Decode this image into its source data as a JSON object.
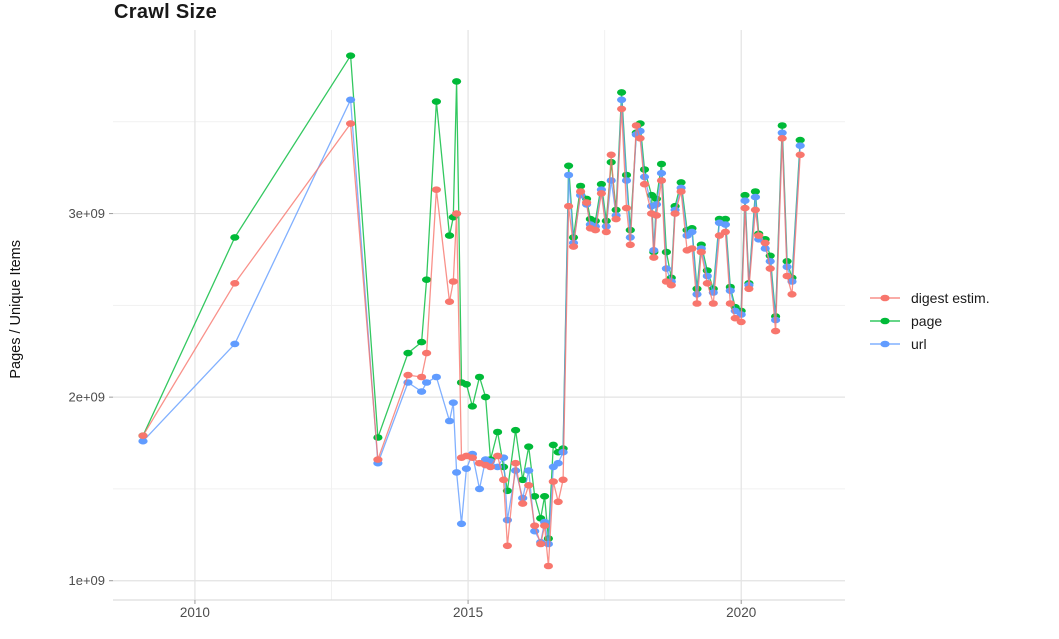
{
  "chart_data": {
    "type": "line",
    "title": "Crawl Size",
    "xlabel": "",
    "ylabel": "Pages / Unique Items",
    "value_unit": "1e9",
    "grid": true,
    "legend_position": "right-center",
    "x_axis": {
      "range": [
        2008.5,
        2021.9
      ],
      "ticks": [
        2010,
        2015,
        2020
      ],
      "tick_labels": [
        "2010",
        "2015",
        "2020"
      ],
      "minor_ticks": [
        2012.5,
        2017.5
      ]
    },
    "y_axis": {
      "range": [
        0.895,
        4.0
      ],
      "ticks": [
        1,
        2,
        3
      ],
      "tick_labels": [
        "1e+09",
        "2e+09",
        "3e+09"
      ],
      "minor_ticks": [
        1.5,
        2.5,
        3.5
      ]
    },
    "x_years": [
      2009.05,
      2010.73,
      2012.85,
      2013.35,
      2013.9,
      2014.15,
      2014.24,
      2014.42,
      2014.66,
      2014.73,
      2014.79,
      2014.88,
      2014.97,
      2015.08,
      2015.21,
      2015.32,
      2015.41,
      2015.54,
      2015.65,
      2015.72,
      2015.87,
      2016.0,
      2016.11,
      2016.22,
      2016.33,
      2016.4,
      2016.47,
      2016.56,
      2016.65,
      2016.74,
      2016.84,
      2016.93,
      2017.06,
      2017.17,
      2017.24,
      2017.33,
      2017.44,
      2017.53,
      2017.62,
      2017.71,
      2017.81,
      2017.9,
      2017.97,
      2018.08,
      2018.15,
      2018.23,
      2018.36,
      2018.4,
      2018.45,
      2018.54,
      2018.63,
      2018.72,
      2018.79,
      2018.9,
      2019.01,
      2019.1,
      2019.19,
      2019.27,
      2019.38,
      2019.49,
      2019.6,
      2019.71,
      2019.8,
      2019.89,
      2020.0,
      2020.07,
      2020.14,
      2020.26,
      2020.32,
      2020.44,
      2020.53,
      2020.63,
      2020.75,
      2020.84,
      2020.93,
      2021.08
    ],
    "series": [
      {
        "name": "digest estim.",
        "color": "#F8766D",
        "values": [
          1.79,
          2.62,
          3.49,
          1.66,
          2.12,
          2.11,
          2.24,
          3.13,
          2.52,
          2.63,
          3.0,
          1.67,
          1.68,
          1.67,
          1.64,
          1.63,
          1.62,
          1.68,
          1.55,
          1.19,
          1.64,
          1.42,
          1.52,
          1.3,
          1.2,
          1.3,
          1.08,
          1.54,
          1.43,
          1.55,
          3.04,
          2.82,
          3.12,
          3.06,
          2.92,
          2.91,
          3.11,
          2.9,
          3.32,
          2.97,
          3.57,
          3.03,
          2.83,
          3.48,
          3.41,
          3.16,
          3.0,
          2.76,
          2.99,
          3.18,
          2.63,
          2.61,
          3.0,
          3.12,
          2.8,
          2.81,
          2.51,
          2.79,
          2.62,
          2.51,
          2.88,
          2.9,
          2.51,
          2.43,
          2.41,
          3.03,
          2.59,
          3.02,
          2.88,
          2.84,
          2.7,
          2.36,
          3.41,
          2.66,
          2.56,
          3.32
        ]
      },
      {
        "name": "page",
        "color": "#00BA38",
        "values": [
          1.79,
          2.87,
          3.86,
          1.78,
          2.24,
          2.3,
          2.64,
          3.61,
          2.88,
          2.98,
          3.72,
          2.08,
          2.07,
          1.95,
          2.11,
          2.0,
          1.66,
          1.81,
          1.62,
          1.49,
          1.82,
          1.55,
          1.73,
          1.46,
          1.34,
          1.46,
          1.23,
          1.74,
          1.7,
          1.72,
          3.26,
          2.87,
          3.15,
          3.08,
          2.97,
          2.96,
          3.16,
          2.96,
          3.28,
          3.02,
          3.66,
          3.21,
          2.91,
          3.44,
          3.49,
          3.24,
          3.1,
          2.79,
          3.08,
          3.27,
          2.79,
          2.65,
          3.04,
          3.17,
          2.91,
          2.92,
          2.59,
          2.83,
          2.69,
          2.59,
          2.97,
          2.97,
          2.6,
          2.49,
          2.47,
          3.1,
          2.62,
          3.12,
          2.89,
          2.86,
          2.77,
          2.44,
          3.48,
          2.74,
          2.65,
          3.4
        ]
      },
      {
        "name": "url",
        "color": "#619CFF",
        "values": [
          1.76,
          2.29,
          3.62,
          1.64,
          2.08,
          2.03,
          2.08,
          2.11,
          1.87,
          1.97,
          1.59,
          1.31,
          1.61,
          1.69,
          1.5,
          1.66,
          1.65,
          1.62,
          1.67,
          1.33,
          1.6,
          1.45,
          1.6,
          1.27,
          1.21,
          1.32,
          1.2,
          1.62,
          1.64,
          1.7,
          3.21,
          2.84,
          3.1,
          3.05,
          2.94,
          2.93,
          3.13,
          2.93,
          3.18,
          2.99,
          3.62,
          3.18,
          2.87,
          3.43,
          3.45,
          3.2,
          3.04,
          2.8,
          3.05,
          3.22,
          2.7,
          2.63,
          3.02,
          3.14,
          2.88,
          2.9,
          2.56,
          2.81,
          2.66,
          2.57,
          2.95,
          2.94,
          2.58,
          2.47,
          2.45,
          3.07,
          2.61,
          3.09,
          2.86,
          2.81,
          2.74,
          2.42,
          3.44,
          2.71,
          2.63,
          3.37
        ]
      }
    ],
    "style": {
      "major_grid_color": "#e3e3e3",
      "minor_grid_color": "#f1f1f1",
      "axis_line_color": "#d6d6d6",
      "tick_mark_color": "#9a9a9a",
      "tick_label_color": "#4d4d4d"
    }
  }
}
